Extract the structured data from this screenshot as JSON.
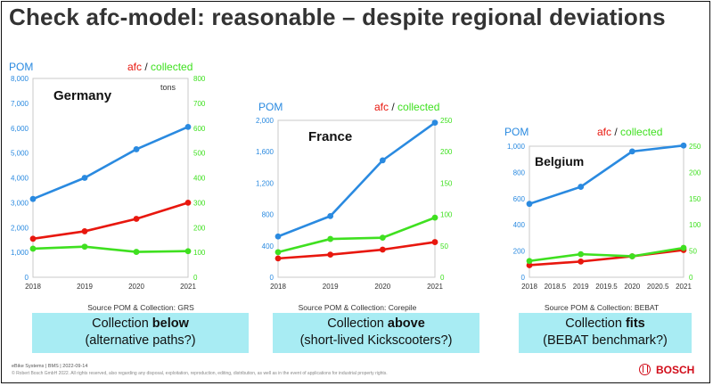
{
  "title": "Check afc-model: reasonable – despite regional deviations",
  "colors": {
    "pom": "#2a8ae0",
    "afc": "#e8170e",
    "collected": "#3fe020",
    "axis_left": "#2a8ae0",
    "axis_right": "#3fe020",
    "box": "#a8ecf3"
  },
  "chart_data": [
    {
      "type": "line",
      "region": "Germany",
      "unit_note": "tons",
      "left_axis_title": "POM",
      "right_axis_title_afc": "afc",
      "right_axis_title_sep": " / ",
      "right_axis_title_collected": "collected",
      "x": [
        2018,
        2019,
        2020,
        2021
      ],
      "x_ticks": [
        "2018",
        "2019",
        "2020",
        "2021"
      ],
      "ylim_left": [
        0,
        8000
      ],
      "yticks_left": [
        "0",
        "1,000",
        "2,000",
        "3,000",
        "4,000",
        "5,000",
        "6,000",
        "7,000",
        "8,000"
      ],
      "ylim_right": [
        0,
        800
      ],
      "yticks_right": [
        "0",
        "100",
        "200",
        "300",
        "400",
        "500",
        "600",
        "700",
        "800"
      ],
      "series": [
        {
          "name": "POM",
          "axis": "left",
          "values": [
            3150,
            4000,
            5150,
            6050
          ]
        },
        {
          "name": "afc",
          "axis": "right",
          "values": [
            155,
            185,
            235,
            300
          ]
        },
        {
          "name": "collected",
          "axis": "right",
          "values": [
            115,
            123,
            102,
            105
          ]
        }
      ],
      "source": "Source POM & Collection: GRS",
      "conclusion_line1_prefix": "Collection ",
      "conclusion_line1_bold": "below",
      "conclusion_line2": "(alternative paths?)"
    },
    {
      "type": "line",
      "region": "France",
      "unit_note": "",
      "left_axis_title": "POM",
      "right_axis_title_afc": "afc",
      "right_axis_title_sep": " / ",
      "right_axis_title_collected": "collected",
      "x": [
        2018,
        2019,
        2020,
        2021
      ],
      "x_ticks": [
        "2018",
        "2019",
        "2020",
        "2021"
      ],
      "ylim_left": [
        0,
        2000
      ],
      "yticks_left": [
        "0",
        "400",
        "800",
        "1,200",
        "1,600",
        "2,000"
      ],
      "ylim_right": [
        0,
        250
      ],
      "yticks_right": [
        "0",
        "50",
        "100",
        "150",
        "200",
        "250"
      ],
      "series": [
        {
          "name": "POM",
          "axis": "left",
          "values": [
            520,
            780,
            1490,
            1970
          ]
        },
        {
          "name": "afc",
          "axis": "right",
          "values": [
            30,
            36,
            44,
            56
          ]
        },
        {
          "name": "collected",
          "axis": "right",
          "values": [
            40,
            61,
            63,
            95
          ]
        }
      ],
      "source": "Source POM & Collection: Corepile",
      "conclusion_line1_prefix": "Collection ",
      "conclusion_line1_bold": "above",
      "conclusion_line2": "(short-lived Kickscooters?)"
    },
    {
      "type": "line",
      "region": "Belgium",
      "unit_note": "",
      "left_axis_title": "POM",
      "right_axis_title_afc": "afc",
      "right_axis_title_sep": " / ",
      "right_axis_title_collected": "collected",
      "x": [
        2018,
        2019,
        2020,
        2021
      ],
      "x_min": 2018,
      "x_max": 2021,
      "x_ticks": [
        "2018",
        "2018.5",
        "2019",
        "2019.5",
        "2020",
        "2020.5",
        "2021"
      ],
      "ylim_left": [
        0,
        1000
      ],
      "yticks_left": [
        "0",
        "200",
        "400",
        "600",
        "800",
        "1,000"
      ],
      "ylim_right": [
        0,
        250
      ],
      "yticks_right": [
        "0",
        "50",
        "100",
        "150",
        "200",
        "250"
      ],
      "series": [
        {
          "name": "POM",
          "axis": "left",
          "values": [
            560,
            690,
            960,
            1005
          ]
        },
        {
          "name": "afc",
          "axis": "right",
          "values": [
            23,
            30,
            40,
            52
          ]
        },
        {
          "name": "collected",
          "axis": "right",
          "values": [
            31,
            44,
            40,
            56
          ]
        }
      ],
      "source": "Source POM & Collection: BEBAT",
      "conclusion_line1_prefix": "Collection ",
      "conclusion_line1_bold": "fits",
      "conclusion_line2": "(BEBAT benchmark?)"
    }
  ],
  "footer": {
    "line1": "eBike Systems | BMS | 2022-09-14",
    "line2": "© Robert Bosch GmbH 2022. All rights reserved, also regarding any disposal, exploitation, reproduction, editing, distribution, as well as in the event of applications for industrial property rights.",
    "brand": "BOSCH"
  }
}
